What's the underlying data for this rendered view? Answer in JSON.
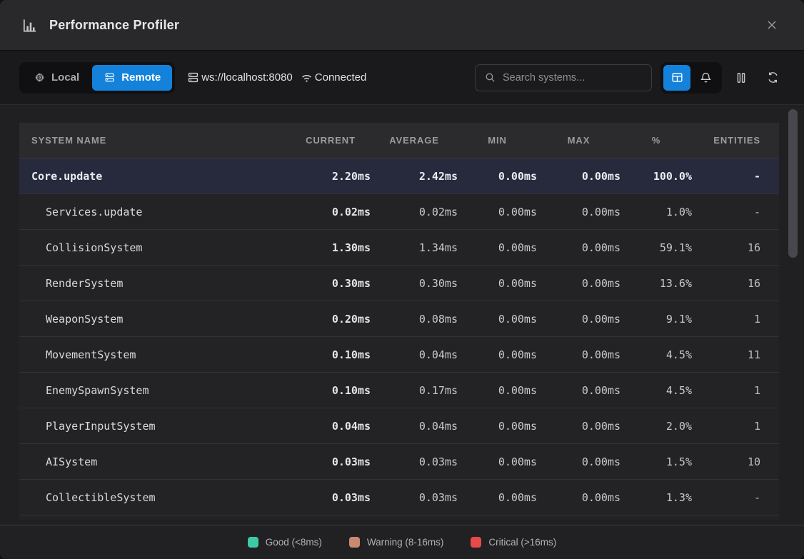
{
  "window": {
    "title": "Performance Profiler"
  },
  "colors": {
    "accent": "#1482db"
  },
  "icons": {
    "titlebar": "bar-chart",
    "local": "cpu",
    "remote": "server",
    "connection": "server",
    "status": "wifi",
    "search": "magnifier",
    "view": "table-grid",
    "alerts": "bell",
    "pause": "pause",
    "refresh": "refresh",
    "close": "close"
  },
  "toolbar": {
    "mode_toggle": [
      {
        "label": "Local",
        "active": false
      },
      {
        "label": "Remote",
        "active": true
      }
    ],
    "connection_url": "ws://localhost:8080",
    "connection_status": "Connected",
    "search": {
      "placeholder": "Search systems..."
    }
  },
  "table": {
    "columns": [
      "SYSTEM NAME",
      "CURRENT",
      "AVERAGE",
      "MIN",
      "MAX",
      "%",
      "ENTITIES"
    ],
    "rows": [
      {
        "name": "Core.update",
        "current": "2.20ms",
        "average": "2.42ms",
        "min": "0.00ms",
        "max": "0.00ms",
        "percent": "100.0%",
        "entities": "-",
        "indent": 0,
        "highlighted": true
      },
      {
        "name": "Services.update",
        "current": "0.02ms",
        "average": "0.02ms",
        "min": "0.00ms",
        "max": "0.00ms",
        "percent": "1.0%",
        "entities": "-",
        "indent": 1,
        "highlighted": false
      },
      {
        "name": "CollisionSystem",
        "current": "1.30ms",
        "average": "1.34ms",
        "min": "0.00ms",
        "max": "0.00ms",
        "percent": "59.1%",
        "entities": "16",
        "indent": 1,
        "highlighted": false
      },
      {
        "name": "RenderSystem",
        "current": "0.30ms",
        "average": "0.30ms",
        "min": "0.00ms",
        "max": "0.00ms",
        "percent": "13.6%",
        "entities": "16",
        "indent": 1,
        "highlighted": false
      },
      {
        "name": "WeaponSystem",
        "current": "0.20ms",
        "average": "0.08ms",
        "min": "0.00ms",
        "max": "0.00ms",
        "percent": "9.1%",
        "entities": "1",
        "indent": 1,
        "highlighted": false
      },
      {
        "name": "MovementSystem",
        "current": "0.10ms",
        "average": "0.04ms",
        "min": "0.00ms",
        "max": "0.00ms",
        "percent": "4.5%",
        "entities": "11",
        "indent": 1,
        "highlighted": false
      },
      {
        "name": "EnemySpawnSystem",
        "current": "0.10ms",
        "average": "0.17ms",
        "min": "0.00ms",
        "max": "0.00ms",
        "percent": "4.5%",
        "entities": "1",
        "indent": 1,
        "highlighted": false
      },
      {
        "name": "PlayerInputSystem",
        "current": "0.04ms",
        "average": "0.04ms",
        "min": "0.00ms",
        "max": "0.00ms",
        "percent": "2.0%",
        "entities": "1",
        "indent": 1,
        "highlighted": false
      },
      {
        "name": "AISystem",
        "current": "0.03ms",
        "average": "0.03ms",
        "min": "0.00ms",
        "max": "0.00ms",
        "percent": "1.5%",
        "entities": "10",
        "indent": 1,
        "highlighted": false
      },
      {
        "name": "CollectibleSystem",
        "current": "0.03ms",
        "average": "0.03ms",
        "min": "0.00ms",
        "max": "0.00ms",
        "percent": "1.3%",
        "entities": "-",
        "indent": 1,
        "highlighted": false
      }
    ]
  },
  "legend": [
    {
      "label": "Good (<8ms)",
      "color": "#3ec9a7"
    },
    {
      "label": "Warning (8-16ms)",
      "color": "#c98a70"
    },
    {
      "label": "Critical (>16ms)",
      "color": "#e84a4a"
    }
  ]
}
